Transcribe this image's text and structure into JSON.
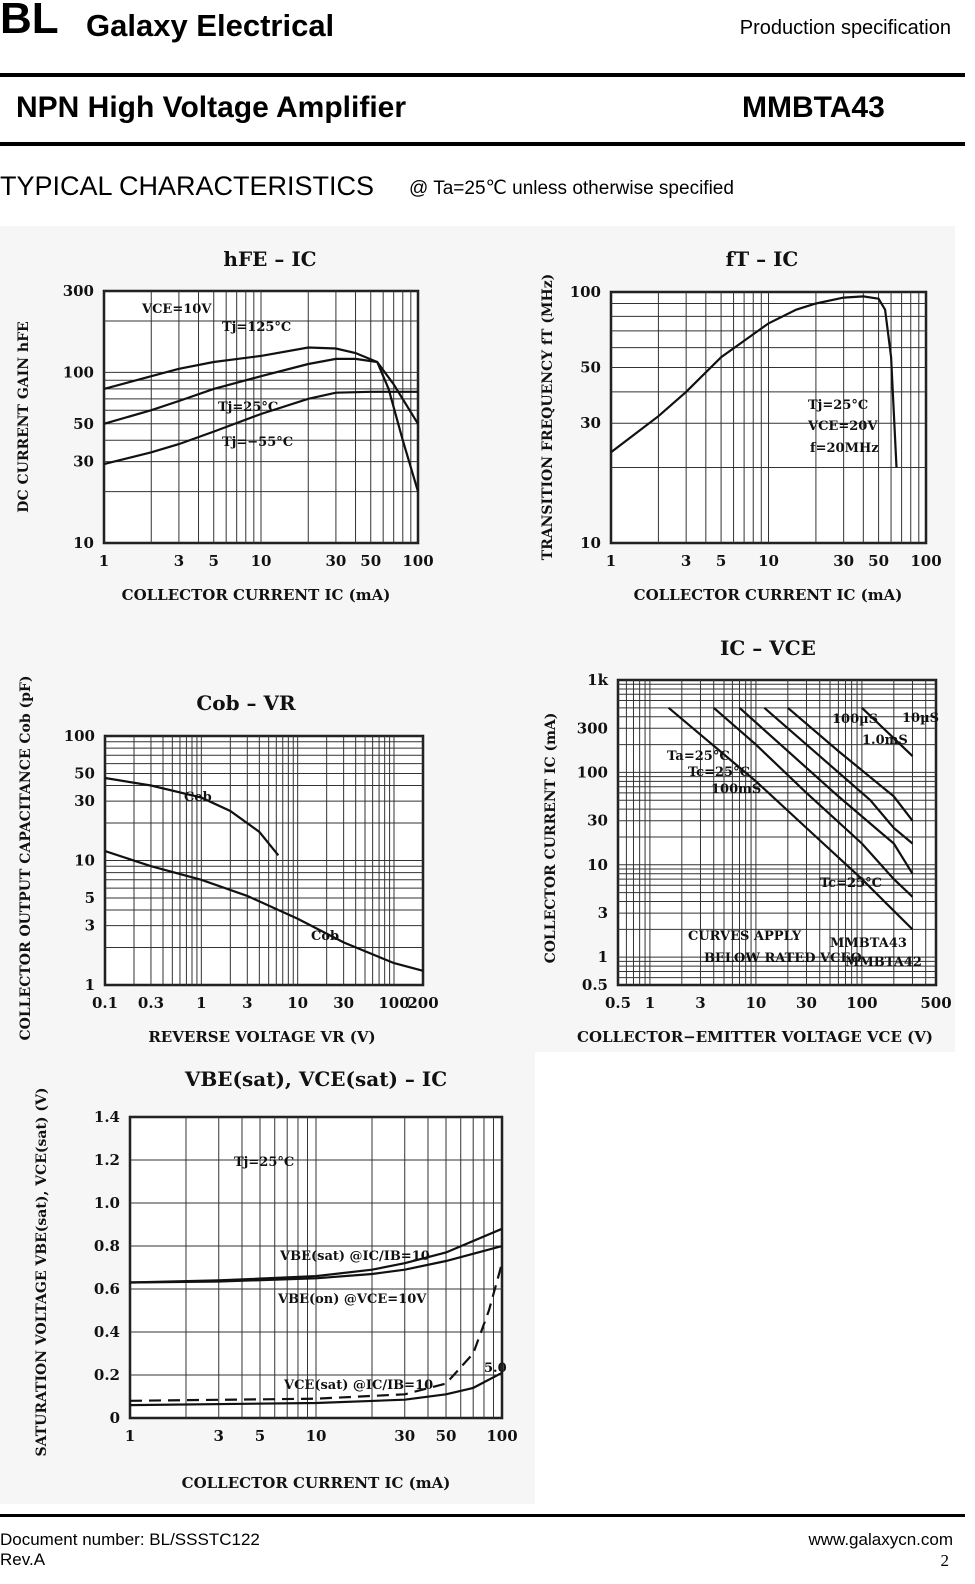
{
  "header": {
    "logo": "BL",
    "company": "Galaxy Electrical",
    "spec": "Production specification",
    "product_title": "NPN High Voltage Amplifier",
    "part_number": "MMBTA43"
  },
  "section": {
    "title": "TYPICAL CHARACTERISTICS",
    "condition": "@ Ta=25℃ unless otherwise specified"
  },
  "footer": {
    "document_number": "Document number: BL/SSSTC122",
    "revision": "Rev.A",
    "website": "www.galaxycn.com",
    "page": "2"
  },
  "chart_data": [
    {
      "type": "line",
      "title": "hFE – IC",
      "xlabel": "COLLECTOR CURRENT IC (mA)",
      "ylabel": "DC CURRENT GAIN hFE",
      "xscale": "log",
      "yscale": "log",
      "xlim": [
        1,
        100
      ],
      "ylim": [
        10,
        300
      ],
      "xticks": [
        "1",
        "3",
        "5",
        "10",
        "30",
        "50",
        "100"
      ],
      "yticks": [
        "10",
        "30",
        "50",
        "100",
        "300"
      ],
      "grid": true,
      "annotations": [
        "VCE=10V",
        "Tj=125°C",
        "Tj=25°C",
        "Tj=−55°C"
      ],
      "series": [
        {
          "name": "Tj=125°C",
          "x": [
            1,
            2,
            3,
            5,
            10,
            20,
            30,
            40,
            55,
            70,
            100
          ],
          "y": [
            80,
            95,
            105,
            115,
            125,
            140,
            138,
            130,
            115,
            85,
            50
          ]
        },
        {
          "name": "Tj=25°C",
          "x": [
            1,
            2,
            3,
            5,
            10,
            20,
            30,
            40,
            55,
            65,
            80,
            100
          ],
          "y": [
            50,
            60,
            68,
            80,
            95,
            112,
            120,
            120,
            115,
            80,
            40,
            20
          ]
        },
        {
          "name": "Tj=−55°C",
          "x": [
            1,
            2,
            3,
            5,
            10,
            20,
            30,
            50,
            100
          ],
          "y": [
            29,
            34,
            38,
            45,
            57,
            70,
            76,
            77,
            77
          ]
        }
      ]
    },
    {
      "type": "line",
      "title": "fT – IC",
      "xlabel": "COLLECTOR CURRENT IC (mA)",
      "ylabel": "TRANSITION FREQUENCY fT (MHz)",
      "xscale": "log",
      "yscale": "log",
      "xlim": [
        1,
        100
      ],
      "ylim": [
        10,
        100
      ],
      "xticks": [
        "1",
        "3",
        "5",
        "10",
        "30",
        "50",
        "100"
      ],
      "yticks": [
        "10",
        "30",
        "50",
        "100"
      ],
      "grid": true,
      "annotations": [
        "Tj=25°C",
        "VCE=20V",
        "f=20MHz"
      ],
      "series": [
        {
          "x": [
            1,
            2,
            3,
            5,
            10,
            15,
            20,
            30,
            40,
            50,
            55,
            60,
            65
          ],
          "y": [
            23,
            32,
            40,
            55,
            75,
            85,
            90,
            95,
            96,
            94,
            85,
            55,
            20
          ]
        }
      ]
    },
    {
      "type": "line",
      "title": "Cob – VR",
      "xlabel": "REVERSE VOLTAGE VR (V)",
      "ylabel": "COLLECTOR OUTPUT CAPACITANCE Cob (pF)",
      "xscale": "log",
      "yscale": "log",
      "xlim": [
        0.1,
        200
      ],
      "ylim": [
        1,
        100
      ],
      "xticks": [
        "0.1",
        "0.3",
        "1",
        "3",
        "10",
        "30",
        "100",
        "200"
      ],
      "yticks": [
        "1",
        "3",
        "5",
        "10",
        "30",
        "50",
        "100"
      ],
      "grid": true,
      "annotations": [
        "Ceb",
        "Cob"
      ],
      "series": [
        {
          "name": "Ceb",
          "x": [
            0.1,
            0.3,
            1,
            2,
            4,
            6.3
          ],
          "y": [
            46,
            40,
            32,
            25,
            17,
            11
          ]
        },
        {
          "name": "Cob",
          "x": [
            0.1,
            0.3,
            1,
            3,
            10,
            30,
            100,
            200
          ],
          "y": [
            11.9,
            9,
            7,
            5.2,
            3.4,
            2.2,
            1.5,
            1.3
          ]
        }
      ]
    },
    {
      "type": "line",
      "title": "IC – VCE",
      "xlabel": "COLLECTOR−EMITTER VOLTAGE VCE (V)",
      "ylabel": "COLLECTOR CURRENT IC (mA)",
      "xscale": "log",
      "yscale": "log",
      "xlim": [
        0.5,
        500
      ],
      "ylim": [
        0.5,
        1000
      ],
      "xticks": [
        "0.5",
        "1",
        "3",
        "10",
        "30",
        "100",
        "500"
      ],
      "yticks": [
        "0.5",
        "1",
        "3",
        "10",
        "30",
        "100",
        "300",
        "1k"
      ],
      "grid": true,
      "annotations": [
        "100µS",
        "10µS",
        "1.0mS",
        "Ta=25°C",
        "Tc=25°C",
        "100mS",
        "Tc=25°C",
        "CURVES APPLY",
        "BELOW RATED VCEO",
        "MMBTA43",
        "MMBTA42"
      ],
      "series": [
        {
          "x": [
            1.5,
            10,
            30,
            100,
            300
          ],
          "y": [
            500,
            80,
            25,
            7,
            2
          ]
        },
        {
          "x": [
            4,
            10,
            30,
            100,
            200,
            300
          ],
          "y": [
            500,
            200,
            60,
            17,
            7,
            4.5
          ]
        },
        {
          "x": [
            7,
            20,
            60,
            200,
            300
          ],
          "y": [
            500,
            170,
            55,
            17,
            8
          ]
        },
        {
          "x": [
            12,
            40,
            120,
            200,
            300
          ],
          "y": [
            500,
            150,
            50,
            25,
            17
          ]
        },
        {
          "x": [
            20,
            60,
            200,
            300
          ],
          "y": [
            500,
            170,
            55,
            30
          ]
        },
        {
          "x": [
            100,
            300
          ],
          "y": [
            500,
            150
          ]
        }
      ]
    },
    {
      "type": "line",
      "title": "VBE(sat), VCE(sat) – IC",
      "xlabel": "COLLECTOR CURRENT IC (mA)",
      "ylabel": "SATURATION VOLTAGE VBE(sat), VCE(sat) (V)",
      "xscale": "log",
      "yscale": "linear",
      "xlim": [
        1,
        100
      ],
      "ylim": [
        0,
        1.4
      ],
      "xticks": [
        "1",
        "3",
        "5",
        "10",
        "30",
        "50",
        "100"
      ],
      "yticks": [
        "0",
        "0.2",
        "0.4",
        "0.6",
        "0.8",
        "1.0",
        "1.2",
        "1.4"
      ],
      "grid": true,
      "annotations": [
        "Tj=25°C",
        "VBE(sat) @IC/IB=10",
        "VBE(on) @VCE=10V",
        "VCE(sat) @IC/IB=10",
        "5.0"
      ],
      "series": [
        {
          "name": "VBE(sat) @IC/IB=10",
          "x": [
            1,
            3,
            10,
            20,
            30,
            50,
            100
          ],
          "y": [
            0.63,
            0.64,
            0.66,
            0.69,
            0.72,
            0.77,
            0.88
          ]
        },
        {
          "name": "VBE(on) @VCE=10V",
          "x": [
            1,
            3,
            10,
            20,
            30,
            50,
            100
          ],
          "y": [
            0.63,
            0.635,
            0.65,
            0.67,
            0.69,
            0.73,
            0.8
          ]
        },
        {
          "name": "VCE(sat) @IC/IB=10",
          "x": [
            1,
            10,
            30,
            50,
            70,
            100
          ],
          "y": [
            0.06,
            0.07,
            0.085,
            0.11,
            0.14,
            0.21
          ]
        },
        {
          "name": "5.0",
          "dashed": true,
          "x": [
            1,
            10,
            30,
            50,
            70,
            85,
            100
          ],
          "y": [
            0.08,
            0.09,
            0.11,
            0.16,
            0.3,
            0.5,
            0.72
          ]
        }
      ]
    }
  ]
}
